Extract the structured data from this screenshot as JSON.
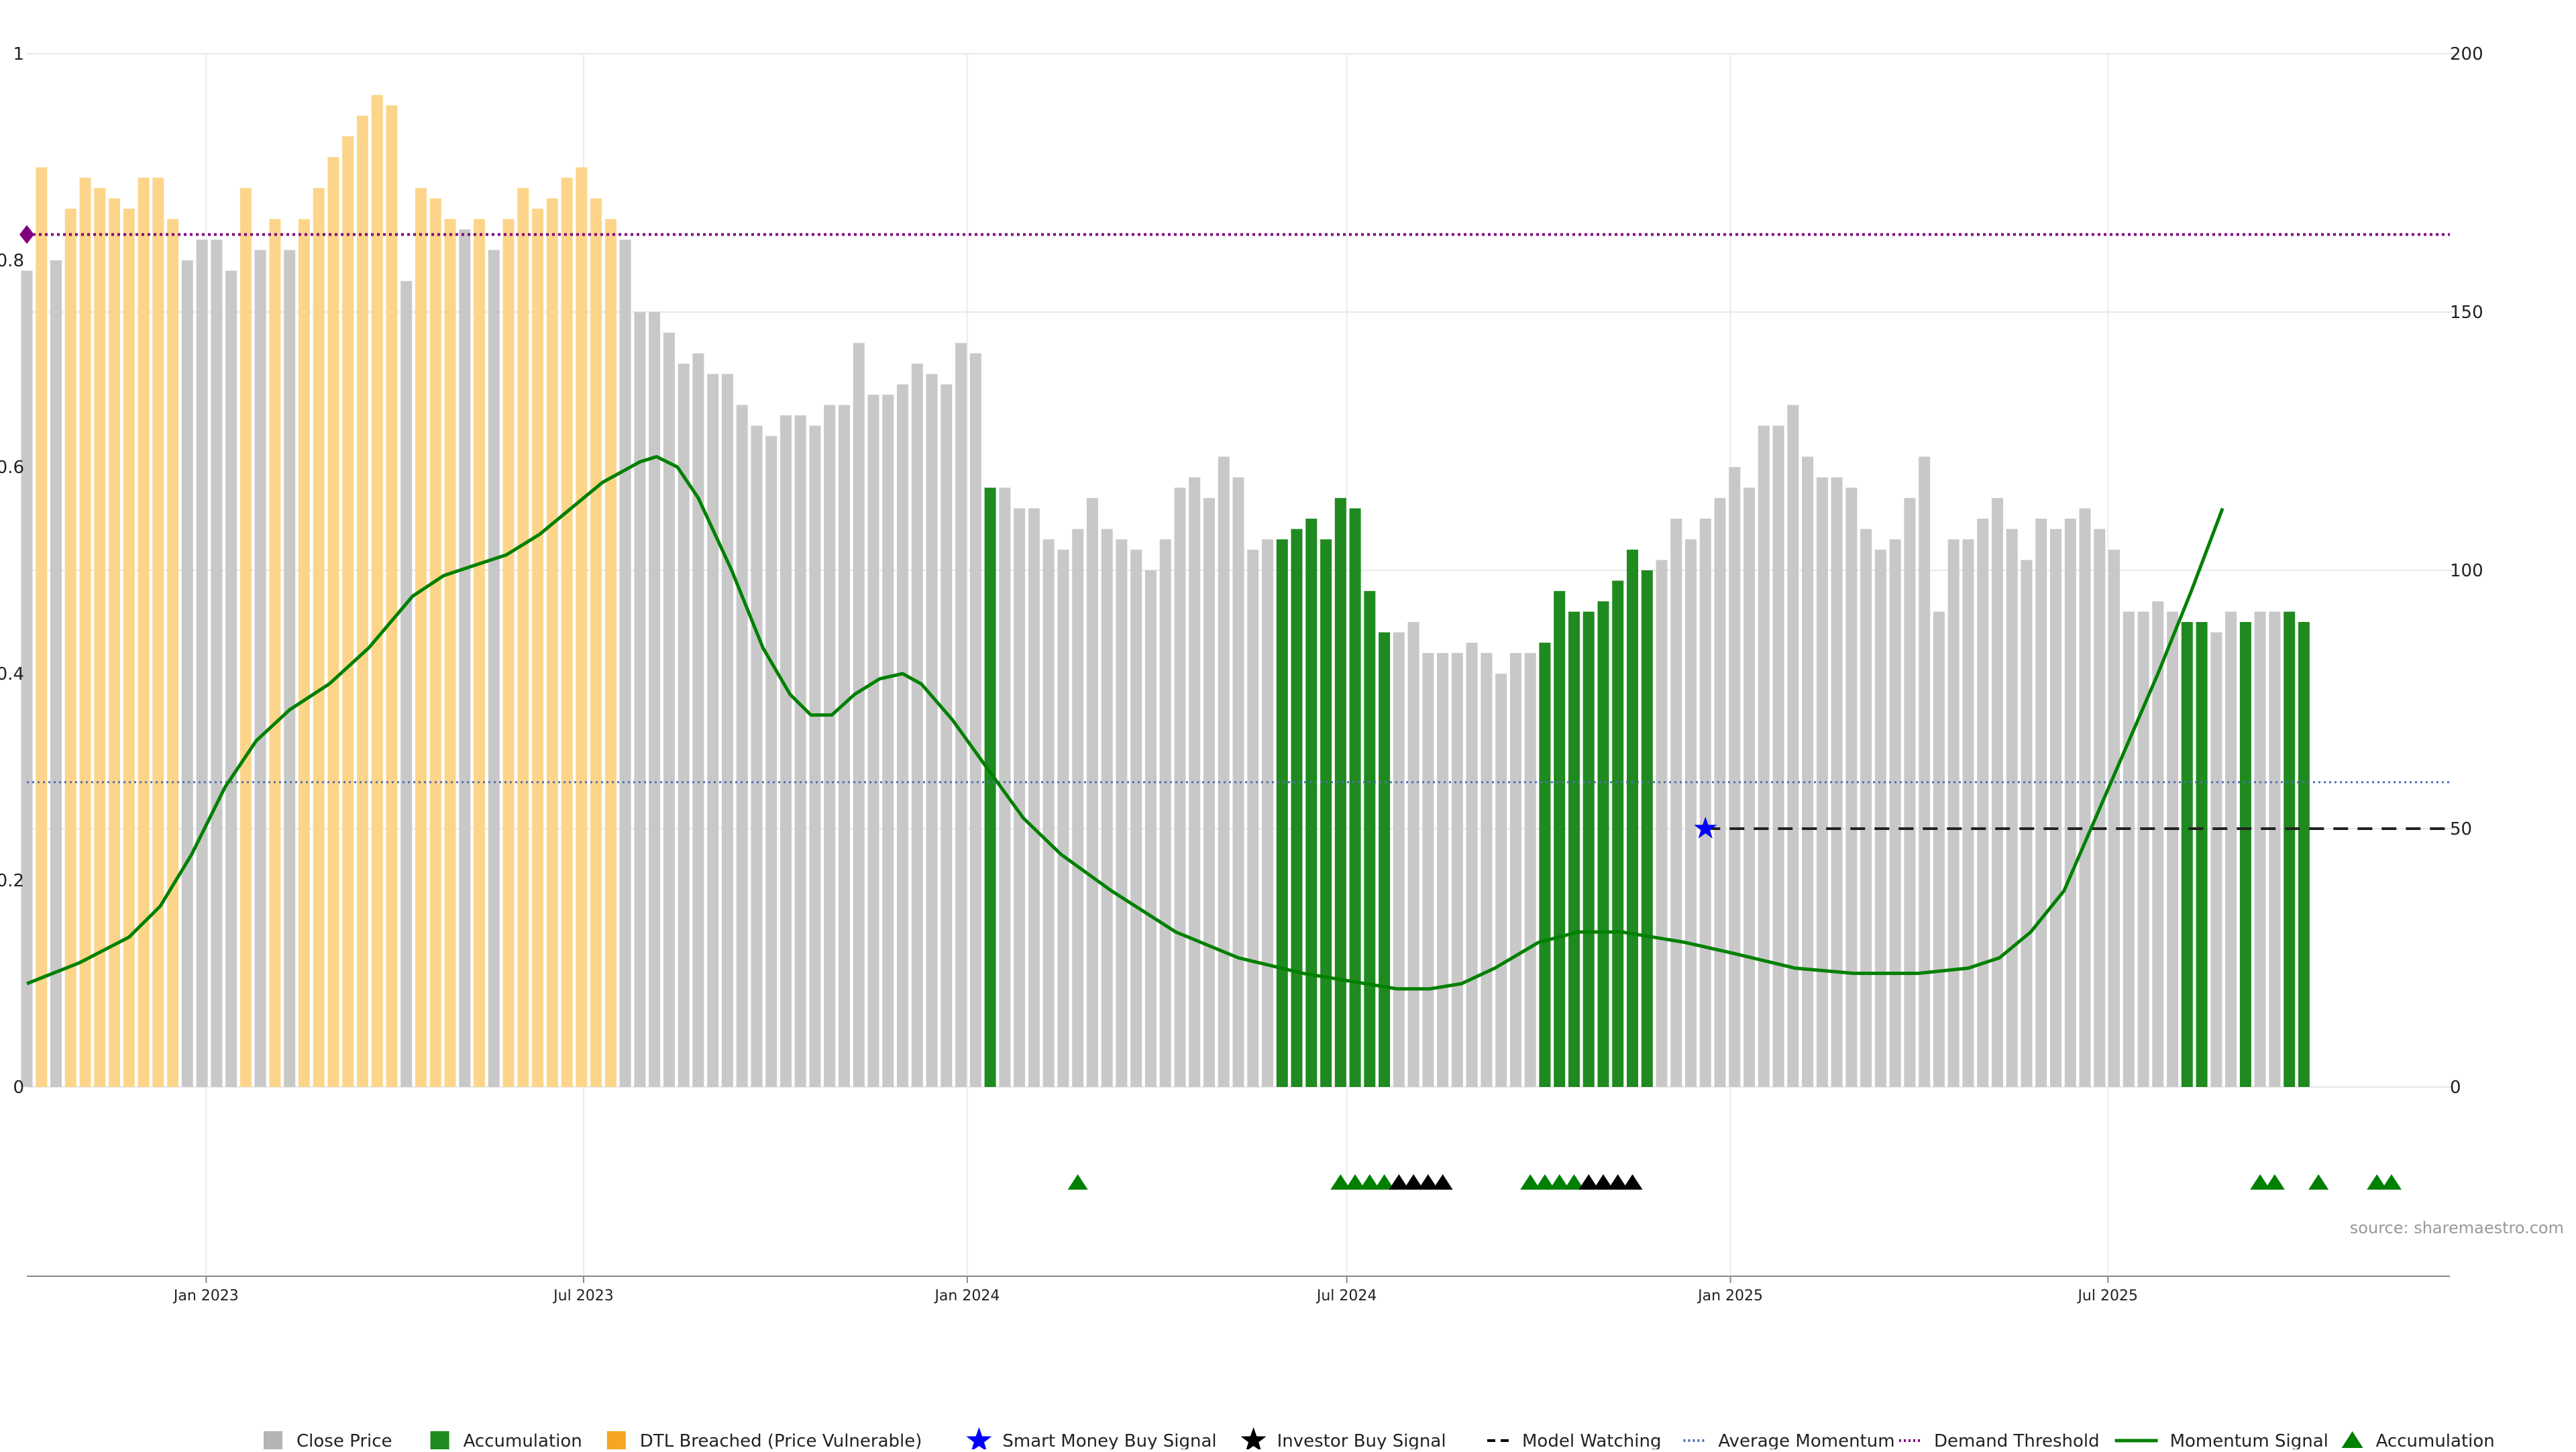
{
  "chart_data": {
    "type": "bar",
    "left_axis": {
      "ticks": [
        0,
        0.2,
        0.4,
        0.6,
        0.8,
        1
      ],
      "tick_labels": [
        "0",
        "0.2",
        "0.4",
        "0.6",
        "0.8",
        "1"
      ],
      "range": [
        0,
        1
      ]
    },
    "right_axis": {
      "ticks": [
        0,
        50,
        100,
        150,
        200
      ],
      "tick_labels": [
        "0",
        "50",
        "100",
        "150",
        "200"
      ],
      "range": [
        0,
        200
      ]
    },
    "x_axis": {
      "start": "2022-10-07",
      "end": "2025-12-12",
      "ticks": [
        "2023-01-01",
        "2023-07-01",
        "2024-01-01",
        "2024-07-01",
        "2025-01-01",
        "2025-07-01"
      ],
      "tick_labels": [
        "Jan 2023",
        "Jul 2023",
        "Jan 2024",
        "Jul 2024",
        "Jan 2025",
        "Jul 2025"
      ]
    },
    "bars": {
      "start_date": "2022-10-07",
      "interval": "weekly",
      "values": [
        0.79,
        0.89,
        0.8,
        0.85,
        0.88,
        0.87,
        0.86,
        0.85,
        0.88,
        0.88,
        0.84,
        0.8,
        0.82,
        0.82,
        0.79,
        0.87,
        0.81,
        0.84,
        0.81,
        0.84,
        0.87,
        0.9,
        0.92,
        0.94,
        0.96,
        0.95,
        0.78,
        0.87,
        0.86,
        0.84,
        0.83,
        0.84,
        0.81,
        0.84,
        0.87,
        0.85,
        0.86,
        0.88,
        0.89,
        0.86,
        0.84,
        0.82,
        0.75,
        0.75,
        0.73,
        0.7,
        0.71,
        0.69,
        0.69,
        0.66,
        0.64,
        0.63,
        0.65,
        0.65,
        0.64,
        0.66,
        0.66,
        0.72,
        0.67,
        0.67,
        0.68,
        0.7,
        0.69,
        0.68,
        0.72,
        0.71,
        0.58,
        0.58,
        0.56,
        0.56,
        0.53,
        0.52,
        0.54,
        0.57,
        0.54,
        0.53,
        0.52,
        0.5,
        0.53,
        0.58,
        0.59,
        0.57,
        0.61,
        0.59,
        0.52,
        0.53,
        0.53,
        0.54,
        0.55,
        0.53,
        0.57,
        0.56,
        0.48,
        0.44,
        0.44,
        0.45,
        0.42,
        0.42,
        0.42,
        0.43,
        0.42,
        0.4,
        0.42,
        0.42,
        0.43,
        0.48,
        0.46,
        0.46,
        0.47,
        0.49,
        0.52,
        0.5,
        0.51,
        0.55,
        0.53,
        0.55,
        0.57,
        0.6,
        0.58,
        0.64,
        0.64,
        0.66,
        0.61,
        0.59,
        0.59,
        0.58,
        0.54,
        0.52,
        0.53,
        0.57,
        0.61,
        0.46,
        0.53,
        0.53,
        0.55,
        0.57,
        0.54,
        0.51,
        0.55,
        0.54,
        0.55,
        0.56,
        0.54,
        0.52,
        0.46,
        0.46,
        0.47,
        0.46,
        0.45,
        0.45,
        0.44,
        0.46,
        0.45,
        0.46,
        0.46,
        0.46,
        0.45
      ],
      "category": [
        "c",
        "d",
        "c",
        "d",
        "d",
        "d",
        "d",
        "d",
        "d",
        "d",
        "d",
        "c",
        "c",
        "c",
        "c",
        "d",
        "c",
        "d",
        "c",
        "d",
        "d",
        "d",
        "d",
        "d",
        "d",
        "d",
        "c",
        "d",
        "d",
        "d",
        "c",
        "d",
        "c",
        "d",
        "d",
        "d",
        "d",
        "d",
        "d",
        "d",
        "d",
        "c",
        "c",
        "c",
        "c",
        "c",
        "c",
        "c",
        "c",
        "c",
        "c",
        "c",
        "c",
        "c",
        "c",
        "c",
        "c",
        "c",
        "c",
        "c",
        "c",
        "c",
        "c",
        "c",
        "c",
        "c",
        "a",
        "c",
        "c",
        "c",
        "c",
        "c",
        "c",
        "c",
        "c",
        "c",
        "c",
        "c",
        "c",
        "c",
        "c",
        "c",
        "c",
        "c",
        "c",
        "c",
        "a",
        "a",
        "a",
        "a",
        "a",
        "a",
        "a",
        "a",
        "c",
        "c",
        "c",
        "c",
        "c",
        "c",
        "c",
        "c",
        "c",
        "c",
        "a",
        "a",
        "a",
        "a",
        "a",
        "a",
        "a",
        "a",
        "c",
        "c",
        "c",
        "c",
        "c",
        "c",
        "c",
        "c",
        "c",
        "c",
        "c",
        "c",
        "c",
        "c",
        "c",
        "c",
        "c",
        "c",
        "c",
        "c",
        "c",
        "c",
        "c",
        "c",
        "c",
        "c",
        "c",
        "c",
        "c",
        "c",
        "c",
        "c",
        "c",
        "c",
        "c",
        "c",
        "a",
        "a",
        "c",
        "c",
        "a",
        "c",
        "c",
        "a",
        "a"
      ]
    },
    "momentum_signal": {
      "axis": "right",
      "points": [
        [
          "2022-10-07",
          20
        ],
        [
          "2022-11-01",
          24
        ],
        [
          "2022-11-25",
          29
        ],
        [
          "2022-12-10",
          35
        ],
        [
          "2022-12-25",
          45
        ],
        [
          "2023-01-10",
          58
        ],
        [
          "2023-01-25",
          67
        ],
        [
          "2023-02-10",
          73
        ],
        [
          "2023-03-01",
          78
        ],
        [
          "2023-03-20",
          85
        ],
        [
          "2023-04-10",
          95
        ],
        [
          "2023-04-25",
          99
        ],
        [
          "2023-05-10",
          101
        ],
        [
          "2023-05-25",
          103
        ],
        [
          "2023-06-10",
          107
        ],
        [
          "2023-06-25",
          112
        ],
        [
          "2023-07-10",
          117
        ],
        [
          "2023-07-28",
          121
        ],
        [
          "2023-08-05",
          122
        ],
        [
          "2023-08-15",
          120
        ],
        [
          "2023-08-25",
          114
        ],
        [
          "2023-09-10",
          100
        ],
        [
          "2023-09-25",
          85
        ],
        [
          "2023-10-08",
          76
        ],
        [
          "2023-10-18",
          72
        ],
        [
          "2023-10-28",
          72
        ],
        [
          "2023-11-08",
          76
        ],
        [
          "2023-11-20",
          79
        ],
        [
          "2023-12-01",
          80
        ],
        [
          "2023-12-10",
          78
        ],
        [
          "2023-12-25",
          71
        ],
        [
          "2024-01-10",
          62
        ],
        [
          "2024-01-28",
          52
        ],
        [
          "2024-02-15",
          45
        ],
        [
          "2024-03-10",
          38
        ],
        [
          "2024-04-10",
          30
        ],
        [
          "2024-05-10",
          25
        ],
        [
          "2024-06-10",
          22
        ],
        [
          "2024-07-10",
          20
        ],
        [
          "2024-07-25",
          19
        ],
        [
          "2024-08-10",
          19
        ],
        [
          "2024-08-25",
          20
        ],
        [
          "2024-09-10",
          23
        ],
        [
          "2024-10-01",
          28
        ],
        [
          "2024-10-20",
          30
        ],
        [
          "2024-11-10",
          30
        ],
        [
          "2024-11-25",
          29
        ],
        [
          "2024-12-10",
          28
        ],
        [
          "2025-01-01",
          26
        ],
        [
          "2025-02-01",
          23
        ],
        [
          "2025-03-01",
          22
        ],
        [
          "2025-04-01",
          22
        ],
        [
          "2025-04-25",
          23
        ],
        [
          "2025-05-10",
          25
        ],
        [
          "2025-05-25",
          30
        ],
        [
          "2025-06-10",
          38
        ],
        [
          "2025-06-25",
          52
        ],
        [
          "2025-07-10",
          66
        ],
        [
          "2025-07-25",
          80
        ],
        [
          "2025-08-10",
          96
        ],
        [
          "2025-08-25",
          112
        ]
      ]
    },
    "average_momentum": {
      "axis": "right",
      "value": 59
    },
    "demand_threshold": {
      "axis": "right",
      "value": 165
    },
    "model_watching": {
      "axis": "right",
      "value": 50,
      "from": "2024-12-20"
    },
    "smart_money_buy_signal": [
      [
        "2024-12-20",
        50
      ]
    ],
    "accumulation_markers": [
      "2024-02-23",
      "2024-06-28",
      "2024-07-05",
      "2024-07-12",
      "2024-07-19",
      "2024-09-27",
      "2024-10-04",
      "2024-10-11",
      "2024-10-18",
      "2025-09-12",
      "2025-09-19",
      "2025-10-10",
      "2025-11-07",
      "2025-11-14"
    ],
    "investor_buy_markers": [
      "2024-07-26",
      "2024-08-02",
      "2024-08-09",
      "2024-08-16",
      "2024-10-25",
      "2024-11-01",
      "2024-11-08",
      "2024-11-15"
    ],
    "demand_threshold_marker": {
      "date": "2022-10-07",
      "axis": "right",
      "value": 165
    },
    "source_text": "source: sharemaestro.com",
    "legend": [
      {
        "label": "Close Price",
        "symbol": "square",
        "color": "#b4b4b4"
      },
      {
        "label": "Accumulation",
        "symbol": "square",
        "color": "#1f8a1f"
      },
      {
        "label": "DTL Breached (Price Vulnerable)",
        "symbol": "square",
        "color": "#f5a623"
      },
      {
        "label": "Smart Money Buy Signal",
        "symbol": "star",
        "color": "#0000ff"
      },
      {
        "label": "Investor Buy Signal",
        "symbol": "star",
        "color": "#000000"
      },
      {
        "label": "Model Watching",
        "symbol": "dash",
        "color": "#000000"
      },
      {
        "label": "Average Momentum",
        "symbol": "dotted",
        "color": "#4c72b0"
      },
      {
        "label": "Demand Threshold",
        "symbol": "dotted",
        "color": "#800080"
      },
      {
        "label": "Momentum Signal",
        "symbol": "line",
        "color": "#008000"
      },
      {
        "label": "Accumulation",
        "symbol": "triangle",
        "color": "#008000"
      }
    ],
    "colors": {
      "close_price": "#c8c8c8",
      "accumulation": "#1f8a1f",
      "dtl_breached": "#fcd58a",
      "momentum": "#008000",
      "average_momentum": "#4c72b0",
      "demand_threshold": "#800080",
      "smart_money": "#0000ff",
      "investor": "#000000"
    },
    "grid": true
  }
}
